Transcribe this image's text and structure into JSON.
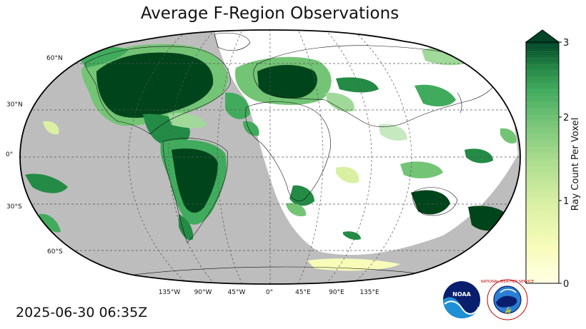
{
  "title": "Average F-Region Observations",
  "timestamp": "2025-06-30 06:35Z",
  "map": {
    "projection": "Robinson",
    "grid_style": "dashed",
    "lat_labels": [
      "60°N",
      "30°N",
      "0°",
      "30°S",
      "60°S"
    ],
    "lon_labels": [
      "135°W",
      "90°W",
      "45°W",
      "0°",
      "45°E",
      "90°E",
      "135°E"
    ],
    "night_shading_color": "#bdbdbd"
  },
  "colorbar": {
    "label": "Ray Count Per Voxel",
    "ticks": [
      "0",
      "1",
      "2",
      "3"
    ],
    "min": 0,
    "max": 3,
    "extend": "max",
    "colormap": "YlGn",
    "color_low": "#ffffe5",
    "color_high": "#004529"
  },
  "logos": {
    "noaa": "NOAA",
    "nws": "NATIONAL WEATHER SERVICE"
  },
  "colors": {
    "dark_green": "#00441b",
    "mid_green": "#238b45",
    "light_green": "#74c476",
    "pale_yellow": "#f7fcb9",
    "night": "#bdbdbd"
  }
}
